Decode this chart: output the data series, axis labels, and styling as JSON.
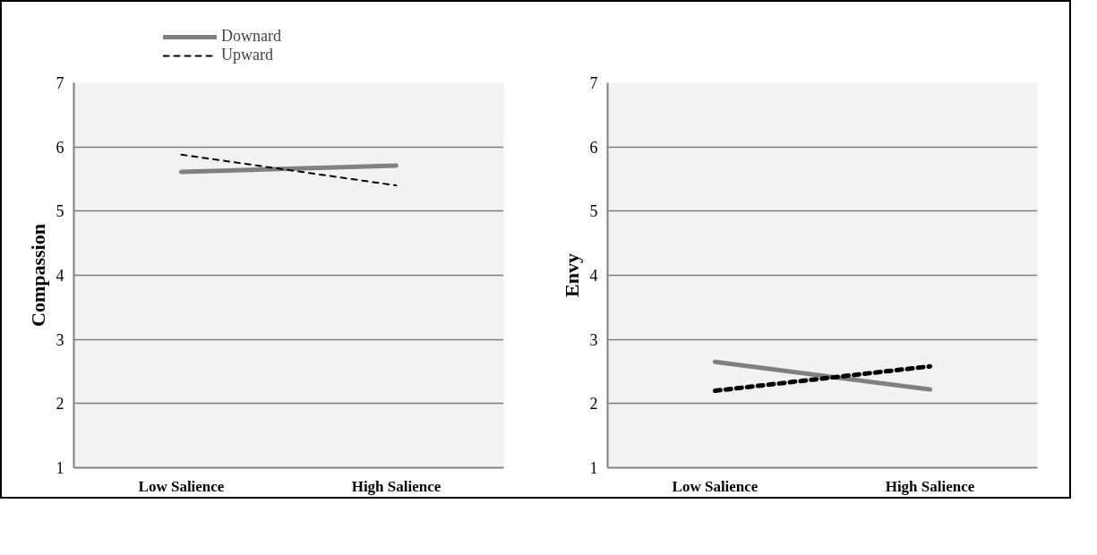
{
  "chart_data": [
    {
      "type": "line",
      "categories": [
        "Low Salience",
        "High Salience"
      ],
      "ylabel": "Compassion",
      "ylim": [
        1,
        7
      ],
      "yticks": [
        1,
        2,
        3,
        4,
        5,
        6,
        7
      ],
      "grid": "y",
      "legend": "top left",
      "marker": "none",
      "series": [
        {
          "name": "Downard",
          "color": "#808080",
          "line_style": "solid",
          "values": [
            5.61,
            5.71
          ]
        },
        {
          "name": "Upward",
          "color": "#000000",
          "line_style": "dashed",
          "values": [
            5.88,
            5.4
          ]
        }
      ]
    },
    {
      "type": "line",
      "categories": [
        "Low Salience",
        "High Salience"
      ],
      "ylabel": "Envy",
      "ylim": [
        1,
        7
      ],
      "yticks": [
        1,
        2,
        3,
        4,
        5,
        6,
        7
      ],
      "grid": "y",
      "marker": "none",
      "series": [
        {
          "color": "#808080",
          "line_style": "solid",
          "values": [
            2.65,
            2.22
          ]
        },
        {
          "color": "#000000",
          "line_style": "dashed",
          "values": [
            2.2,
            2.58
          ]
        }
      ]
    }
  ]
}
